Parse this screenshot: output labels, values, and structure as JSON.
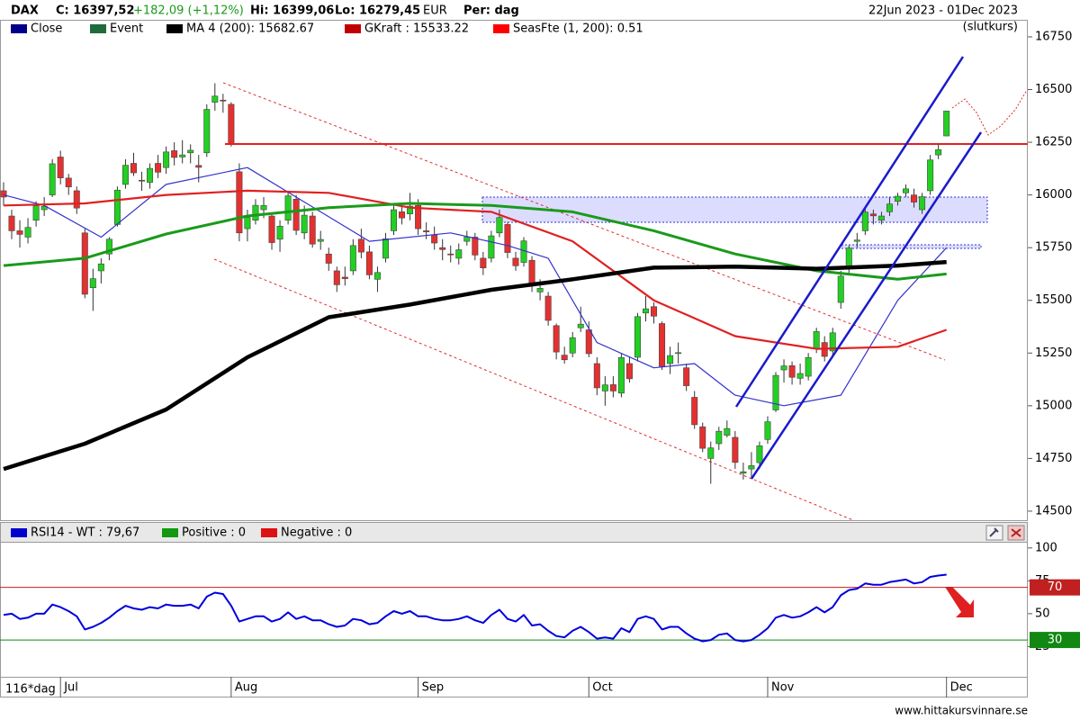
{
  "chart_data": {
    "type": "candlestick",
    "title": "DAX",
    "close_text": "C: 16397,52",
    "change_text": "+182,09 (+1,12%)",
    "high_text": "Hi: 16399,06",
    "low_text": "Lo: 16279,45",
    "currency": "EUR",
    "period": "Per: dag",
    "date_range": "22Jun 2023 - 01Dec 2023",
    "price_basis": "(slutkurs)",
    "bar_count": "116*dag",
    "source": "www.hittakursvinnare.se",
    "legend": [
      {
        "label": "Close",
        "color": "#00008b"
      },
      {
        "label": "Event",
        "color": "#1e6b3c"
      },
      {
        "label": "MA 4 (200): 15682.67",
        "color": "#000000"
      },
      {
        "label": "GKraft : 15533.22",
        "color": "#c00000"
      },
      {
        "label": "SeasFte (1, 200): 0.51",
        "color": "#ff0000"
      }
    ],
    "xlim": [
      -0.44,
      126
    ],
    "xticks": [
      {
        "value": 7,
        "label": "Jul"
      },
      {
        "value": 28,
        "label": "Aug"
      },
      {
        "value": 51,
        "label": "Sep"
      },
      {
        "value": 72,
        "label": "Oct"
      },
      {
        "value": 94,
        "label": "Nov"
      },
      {
        "value": 116,
        "label": "Dec"
      }
    ],
    "ylim": [
      14457,
      16831
    ],
    "yticks": [
      14500,
      14750,
      15000,
      15250,
      15500,
      15750,
      16000,
      16250,
      16500,
      16750
    ],
    "candles": {
      "up_color": "#22d022",
      "down_color": "#e53030",
      "open": [
        16020,
        15900,
        15830,
        15800,
        15880,
        15930,
        16000,
        16180,
        16080,
        16020,
        15820,
        15560,
        15640,
        15720,
        15860,
        16050,
        16150,
        16070,
        16060,
        16150,
        16130,
        16210,
        16180,
        16200,
        16140,
        16200,
        16440,
        16450,
        16430,
        16110,
        15840,
        15880,
        15930,
        15900,
        15790,
        15880,
        15980,
        15820,
        15900,
        15780,
        15720,
        15640,
        15610,
        15640,
        15790,
        15730,
        15600,
        15700,
        15830,
        15920,
        15910,
        15950,
        15830,
        15810,
        15750,
        15720,
        15700,
        15780,
        15800,
        15700,
        15700,
        15820,
        15860,
        15700,
        15680,
        15690,
        15540,
        15520,
        15380,
        15240,
        15250,
        15370,
        15360,
        15200,
        15070,
        15100,
        15060,
        15200,
        15230,
        15440,
        15470,
        15390,
        15200,
        15250,
        15180,
        15040,
        14900,
        14750,
        14820,
        14860,
        14850,
        14680,
        14700,
        14730,
        14840,
        14980,
        15170,
        15190,
        15130,
        15140,
        15270,
        15300,
        15260,
        15490,
        15660,
        15780,
        15830,
        15910,
        15880,
        15920,
        15970,
        16010,
        16000,
        15930,
        16020,
        16190,
        16280
      ],
      "high": [
        16060,
        15930,
        15880,
        15890,
        15970,
        15990,
        16170,
        16210,
        16100,
        16040,
        15840,
        15650,
        15700,
        15800,
        16040,
        16170,
        16200,
        16110,
        16150,
        16190,
        16230,
        16250,
        16260,
        16240,
        16190,
        16430,
        16530,
        16480,
        16440,
        16150,
        15930,
        15980,
        15990,
        15910,
        15880,
        16020,
        16000,
        15950,
        15920,
        15830,
        15750,
        15660,
        15660,
        15790,
        15840,
        15760,
        15660,
        15820,
        15960,
        15950,
        16010,
        15980,
        15870,
        15850,
        15790,
        15760,
        15770,
        15830,
        15820,
        15730,
        15830,
        15930,
        15870,
        15730,
        15800,
        15710,
        15600,
        15540,
        15390,
        15280,
        15350,
        15470,
        15400,
        15230,
        15140,
        15140,
        15250,
        15230,
        15440,
        15520,
        15490,
        15400,
        15280,
        15300,
        15200,
        15070,
        14920,
        14830,
        14900,
        14930,
        14880,
        14730,
        14780,
        14830,
        14950,
        15160,
        15220,
        15210,
        15200,
        15250,
        15370,
        15330,
        15370,
        15640,
        15760,
        15820,
        15940,
        15930,
        15920,
        15990,
        16010,
        16050,
        16030,
        16010,
        16190,
        16240,
        16400
      ],
      "low": [
        15950,
        15790,
        15750,
        15770,
        15850,
        15900,
        15990,
        16050,
        16000,
        15910,
        15510,
        15450,
        15580,
        15690,
        15850,
        16030,
        16090,
        16020,
        16030,
        16080,
        16100,
        16140,
        16150,
        16150,
        16060,
        16180,
        16400,
        16390,
        16230,
        15780,
        15780,
        15860,
        15890,
        15740,
        15730,
        15860,
        15810,
        15790,
        15750,
        15740,
        15640,
        15540,
        15570,
        15620,
        15700,
        15600,
        15540,
        15680,
        15810,
        15860,
        15880,
        15810,
        15790,
        15740,
        15690,
        15680,
        15670,
        15760,
        15690,
        15620,
        15680,
        15800,
        15700,
        15640,
        15660,
        15540,
        15500,
        15380,
        15220,
        15200,
        15230,
        15350,
        15230,
        15050,
        15000,
        15040,
        15040,
        15110,
        15210,
        15400,
        15390,
        15170,
        15150,
        15200,
        15070,
        14890,
        14780,
        14630,
        14790,
        14850,
        14700,
        14650,
        14660,
        14700,
        14820,
        14970,
        15110,
        15100,
        15100,
        15120,
        15250,
        15210,
        15240,
        15460,
        15630,
        15750,
        15810,
        15860,
        15860,
        15900,
        15950,
        15990,
        15940,
        15910,
        16000,
        16170,
        16280
      ],
      "close": [
        15990,
        15830,
        15813,
        15846,
        15949,
        15946,
        16148,
        16081,
        16038,
        15938,
        15529,
        15603,
        15673,
        15790,
        16023,
        16141,
        16105,
        16068,
        16126,
        16108,
        16204,
        16178,
        16190,
        16212,
        16131,
        16406,
        16469,
        16446,
        16240,
        15820,
        15893,
        15951,
        15950,
        15774,
        15852,
        15996,
        15832,
        15904,
        15767,
        15789,
        15676,
        15574,
        15603,
        15760,
        15729,
        15621,
        15632,
        15792,
        15930,
        15891,
        15947,
        15840,
        15825,
        15772,
        15741,
        15718,
        15740,
        15800,
        15715,
        15654,
        15806,
        15893,
        15727,
        15664,
        15782,
        15572,
        15557,
        15405,
        15255,
        15218,
        15323,
        15387,
        15247,
        15085,
        15099,
        15070,
        15229,
        15128,
        15423,
        15460,
        15425,
        15187,
        15238,
        15252,
        15095,
        14910,
        14798,
        14800,
        14879,
        14892,
        14731,
        14687,
        14716,
        14810,
        14924,
        15144,
        15189,
        15135,
        15153,
        15229,
        15352,
        15234,
        15346,
        15615,
        15748,
        15786,
        15919,
        15901,
        15900,
        15957,
        15994,
        16029,
        15966,
        15992,
        16166,
        16215,
        16398
      ]
    },
    "lines": [
      {
        "color": "#3333cc",
        "width": 1.2,
        "x": [
          0,
          5,
          12,
          20,
          30,
          36,
          45,
          55,
          62,
          67,
          73,
          80,
          85,
          90,
          96,
          103,
          110,
          116
        ],
        "values": [
          16000,
          15950,
          15800,
          16050,
          16130,
          15990,
          15780,
          15820,
          15760,
          15700,
          15300,
          15180,
          15200,
          15050,
          15000,
          15050,
          15500,
          15750
        ]
      },
      {
        "color": "#e02020",
        "width": 2.2,
        "x": [
          0,
          10,
          20,
          30,
          40,
          50,
          60,
          70,
          80,
          90,
          100,
          110,
          116
        ],
        "values": [
          15950,
          15960,
          16000,
          16020,
          16010,
          15940,
          15920,
          15780,
          15500,
          15330,
          15270,
          15280,
          15360
        ]
      },
      {
        "color": "#1a9a1a",
        "width": 3,
        "x": [
          0,
          10,
          20,
          30,
          40,
          50,
          60,
          70,
          80,
          90,
          100,
          110,
          116
        ],
        "values": [
          15665,
          15700,
          15815,
          15900,
          15940,
          15960,
          15950,
          15920,
          15830,
          15720,
          15640,
          15600,
          15625
        ]
      },
      {
        "color": "#000000",
        "width": 4.5,
        "x": [
          0,
          10,
          20,
          30,
          40,
          50,
          60,
          70,
          80,
          90,
          100,
          110,
          116
        ],
        "values": [
          14700,
          14820,
          14982,
          15230,
          15420,
          15480,
          15550,
          15600,
          15655,
          15660,
          15650,
          15665,
          15682
        ]
      }
    ],
    "rsi": {
      "color": "#0000dd",
      "legend": [
        {
          "label": "RSI14 - WT : 79,67",
          "color": "#0000cc"
        },
        {
          "label": "Positive : 0",
          "color": "#119911"
        },
        {
          "label": "Negative : 0",
          "color": "#dd1111"
        }
      ],
      "ylim": [
        2,
        104
      ],
      "yticks": [
        25,
        50,
        75,
        100
      ],
      "levels": [
        {
          "value": 70,
          "color": "#c02020"
        },
        {
          "value": 30,
          "color": "#118811"
        }
      ],
      "values": [
        49,
        50,
        46,
        47,
        50,
        50,
        57,
        55,
        52,
        48,
        38,
        40,
        43,
        47,
        52,
        56,
        54,
        53,
        55,
        54,
        57,
        56,
        56,
        57,
        54,
        63,
        66,
        65,
        56,
        44,
        46,
        48,
        48,
        44,
        46,
        51,
        46,
        48,
        45,
        45,
        42,
        40,
        41,
        46,
        45,
        42,
        43,
        48,
        52,
        50,
        52,
        48,
        48,
        46,
        45,
        45,
        46,
        48,
        45,
        43,
        49,
        53,
        46,
        44,
        49,
        41,
        42,
        37,
        33,
        32,
        37,
        40,
        36,
        31,
        32,
        31,
        39,
        36,
        46,
        48,
        46,
        38,
        40,
        40,
        35,
        31,
        29,
        30,
        34,
        35,
        30,
        29,
        30,
        34,
        39,
        47,
        49,
        47,
        48,
        51,
        55,
        51,
        55,
        64,
        68,
        69,
        73,
        72,
        72,
        74,
        75,
        76,
        73,
        74,
        78,
        79,
        79.67
      ]
    }
  }
}
